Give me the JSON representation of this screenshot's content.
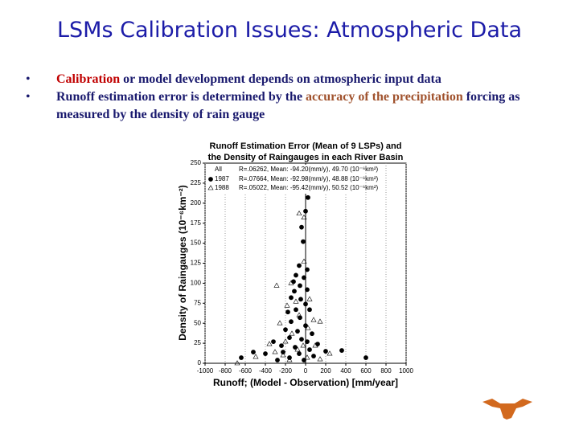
{
  "slide": {
    "title": "LSMs Calibration Issues: Atmospheric Data",
    "bullets": [
      [
        "Calibration",
        " or model development depends on atmospheric input data"
      ],
      [
        "Runoff estimation error is determined by the ",
        "accuracy of  the precipitation",
        " forcing as measured by the density of rain gauge"
      ]
    ]
  },
  "chart_data": {
    "type": "scatter",
    "title": [
      "Runoff Estimation Error (Mean of 9 LSPs) and",
      "the Density of Raingauges in each River Basin"
    ],
    "xlabel": "Runoff; (Model - Observation) [mm/year]",
    "ylabel": "Density of Raingauges (10⁻⁶km⁻²)",
    "xlim": [
      -1000,
      1000
    ],
    "xticks": [
      -1000,
      -800,
      -600,
      -400,
      -200,
      0,
      200,
      400,
      600,
      800,
      1000
    ],
    "ylim": [
      0,
      250
    ],
    "yticks": [
      0,
      25,
      50,
      75,
      100,
      125,
      150,
      175,
      200,
      225,
      250
    ],
    "grid": "x",
    "legend_all": "All",
    "legend_stats": [
      "R=.06262, Mean: -94.20(mm/y), 49.70 (10⁻⁶km²)",
      "R=.07664, Mean: -92.98(mm/y), 48.88 (10⁻⁶km²)",
      "R=.05022, Mean: -95.42(mm/y), 50.52 (10⁻⁶km²)"
    ],
    "series": [
      {
        "name": "1987",
        "color": "#000000",
        "marker": "circle",
        "filled": true,
        "x": [
          24,
          0,
          -40,
          -24,
          -64,
          -96,
          -16,
          -56,
          -112,
          16,
          -144,
          -48,
          0,
          -96,
          40,
          -176,
          -56,
          -144,
          0,
          -200,
          -80,
          64,
          -160,
          -40,
          -320,
          120,
          -240,
          -104,
          40,
          -520,
          -400,
          200,
          360,
          600,
          -640,
          -64,
          -160,
          80,
          -280,
          -16,
          -224,
          16,
          -120,
          16
        ],
        "values": [
          207,
          190,
          170,
          152,
          122,
          110,
          107,
          97,
          90,
          92,
          82,
          80,
          74,
          67,
          67,
          64,
          57,
          52,
          47,
          42,
          40,
          37,
          32,
          30,
          27,
          24,
          22,
          20,
          17,
          14,
          12,
          15,
          16,
          7,
          7,
          12,
          7,
          9,
          4,
          4,
          14,
          27,
          102,
          117
        ]
      },
      {
        "name": "1988",
        "color": "#000000",
        "marker": "triangle",
        "filled": false,
        "x": [
          -64,
          -16,
          -288,
          -144,
          -16,
          -96,
          40,
          -184,
          -64,
          80,
          -256,
          24,
          -136,
          144,
          -360,
          -200,
          96,
          -80,
          240,
          -496,
          -304,
          16,
          -160,
          144,
          -224,
          -24,
          -680
        ],
        "values": [
          187,
          182,
          97,
          100,
          127,
          77,
          80,
          72,
          60,
          54,
          50,
          44,
          37,
          52,
          24,
          27,
          22,
          17,
          12,
          8,
          14,
          7,
          4,
          5,
          10,
          22,
          0
        ]
      }
    ]
  }
}
